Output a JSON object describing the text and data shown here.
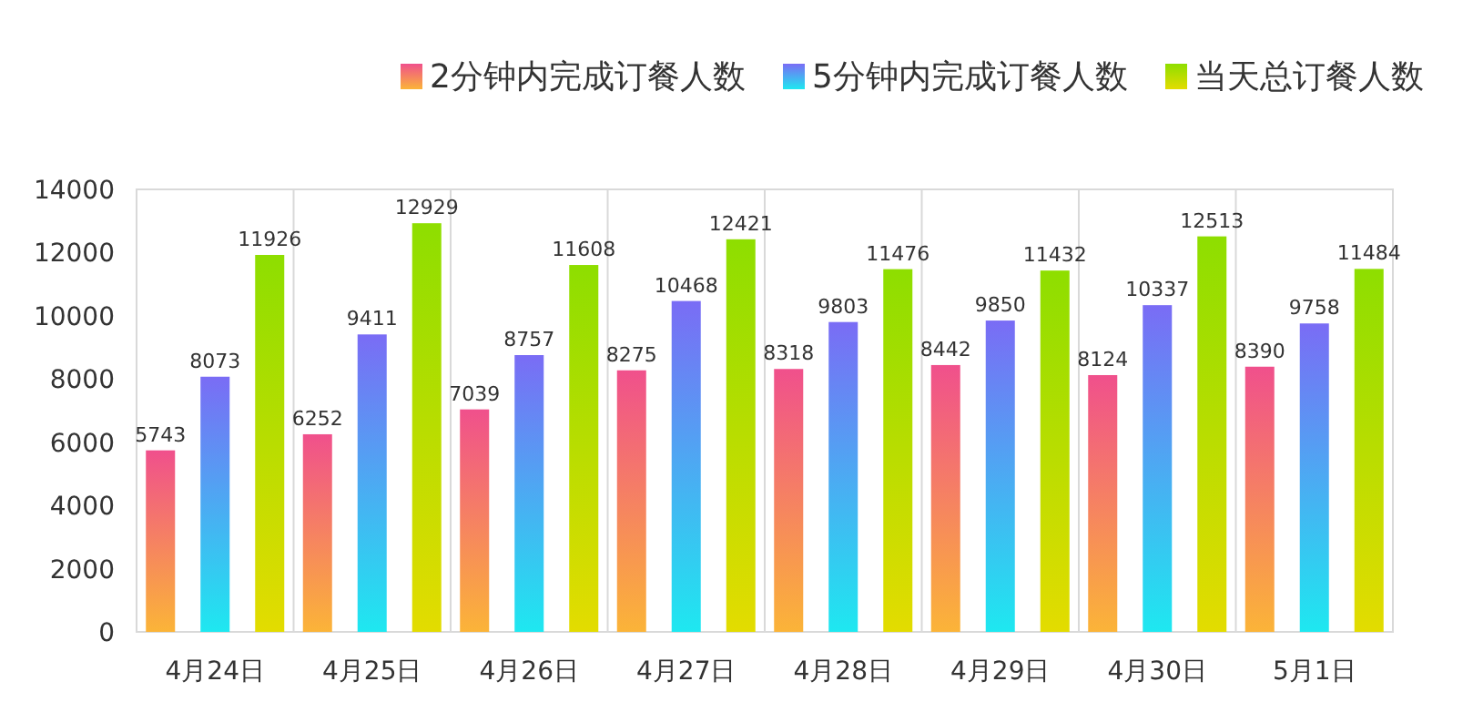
{
  "chart_data": {
    "type": "bar",
    "categories": [
      "4月24日",
      "4月25日",
      "4月26日",
      "4月27日",
      "4月28日",
      "4月29日",
      "4月30日",
      "5月1日"
    ],
    "series": [
      {
        "name": "2分钟内完成订餐人数",
        "color": "#f0508c",
        "values": [
          5743,
          6252,
          7039,
          8275,
          8318,
          8442,
          8124,
          8390
        ]
      },
      {
        "name": "5分钟内完成订餐人数",
        "color": "#7a6cf5",
        "values": [
          8073,
          9411,
          8757,
          10468,
          9803,
          9850,
          10337,
          9758
        ]
      },
      {
        "name": "当天总订餐人数",
        "color": "#8ede00",
        "values": [
          11926,
          12929,
          11608,
          12421,
          11476,
          11432,
          12513,
          11484
        ]
      }
    ],
    "ylim": [
      0,
      14000
    ],
    "yticks": [
      0,
      2000,
      4000,
      6000,
      8000,
      10000,
      12000,
      14000
    ],
    "grid": "x",
    "legend": "top right",
    "data_labels": true
  }
}
